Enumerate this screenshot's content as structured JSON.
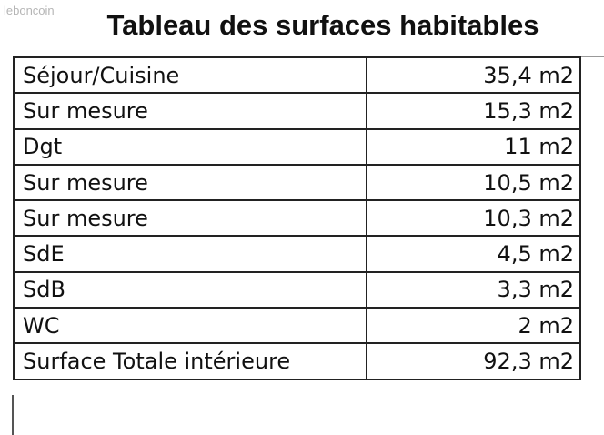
{
  "watermark": "leboncoin",
  "title": "Tableau des surfaces habitables",
  "table": {
    "rows": [
      [
        "Séjour/Cuisine",
        "35,4 m2"
      ],
      [
        "Sur mesure",
        "15,3 m2"
      ],
      [
        "Dgt",
        "11 m2"
      ],
      [
        "Sur mesure",
        "10,5 m2"
      ],
      [
        "Sur mesure",
        "10,3 m2"
      ],
      [
        "SdE",
        "4,5 m2"
      ],
      [
        "SdB",
        "3,3 m2"
      ],
      [
        "WC",
        "2 m2"
      ],
      [
        "Surface Totale intérieure",
        "92,3 m2"
      ]
    ]
  }
}
